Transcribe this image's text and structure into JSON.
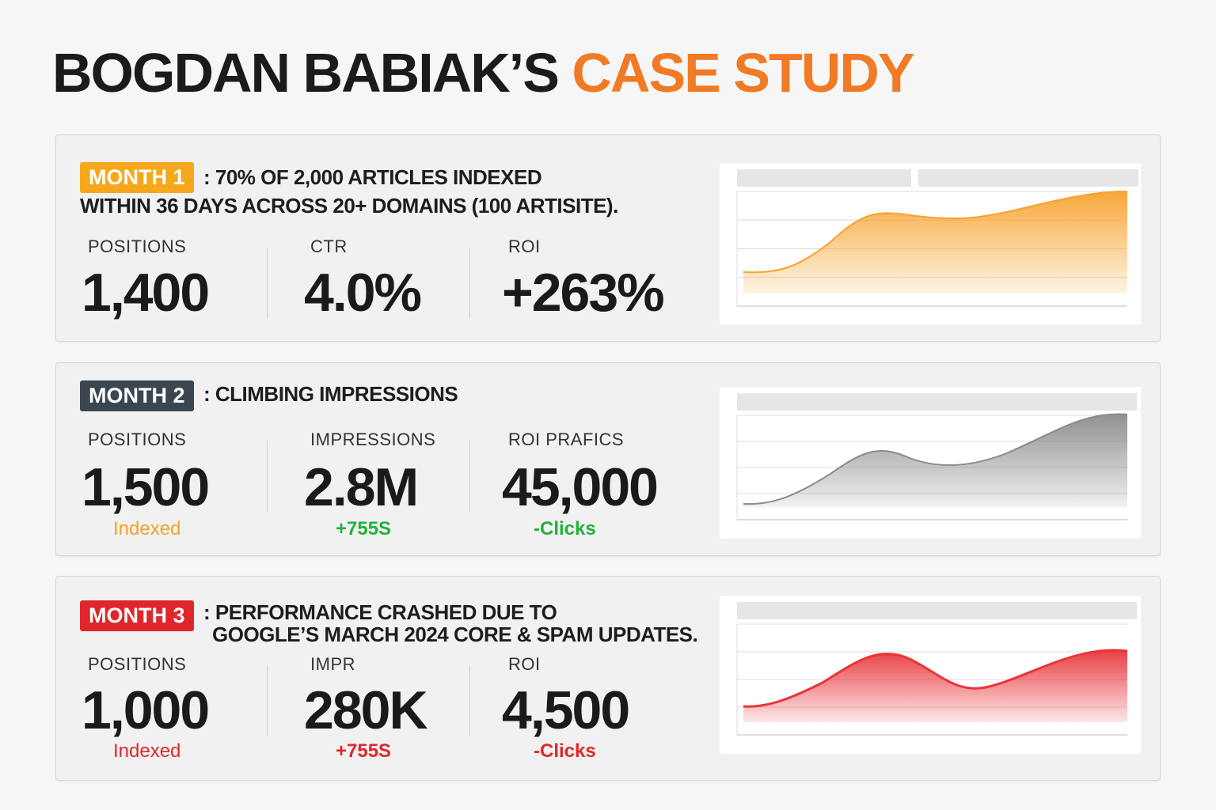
{
  "title": {
    "main": "BOGDAN BABIAK’S",
    "accent": "CASE STUDY"
  },
  "cards": [
    {
      "badge": "MONTH 1",
      "headline": [
        ": 70% OF 2,000 ARTICLES INDEXED",
        "WITHIN 36 DAYS ACROSS 20+ DOMAINS (100 ARTISITE)."
      ],
      "metrics": [
        {
          "label": "POSITIONS",
          "value": "1,400"
        },
        {
          "label": "CTR",
          "value": "4.0%"
        },
        {
          "label": "ROI",
          "value": "+263%"
        }
      ]
    },
    {
      "badge": "MONTH 2",
      "headline": [
        ": CLIMBING IMPRESSIONS"
      ],
      "metrics": [
        {
          "label": "POSITIONS",
          "value": "1,500",
          "sub": "Indexed"
        },
        {
          "label": "IMPRESSIONS",
          "value": "2.8M",
          "sub": "+755S"
        },
        {
          "label": "ROI PRAFICS",
          "value": "45,000",
          "sub": "-Clicks"
        }
      ]
    },
    {
      "badge": "MONTH 3",
      "headline": [
        ": PERFORMANCE CRASHED DUE TO",
        "GOOGLE’S MARCH 2024 CORE & SPAM UPDATES."
      ],
      "metrics": [
        {
          "label": "POSITIONS",
          "value": "1,000",
          "sub": "Indexed"
        },
        {
          "label": "IMPR",
          "value": "280K",
          "sub": "+755S"
        },
        {
          "label": "ROI",
          "value": "4,500",
          "sub": "-Clicks"
        }
      ]
    }
  ]
}
